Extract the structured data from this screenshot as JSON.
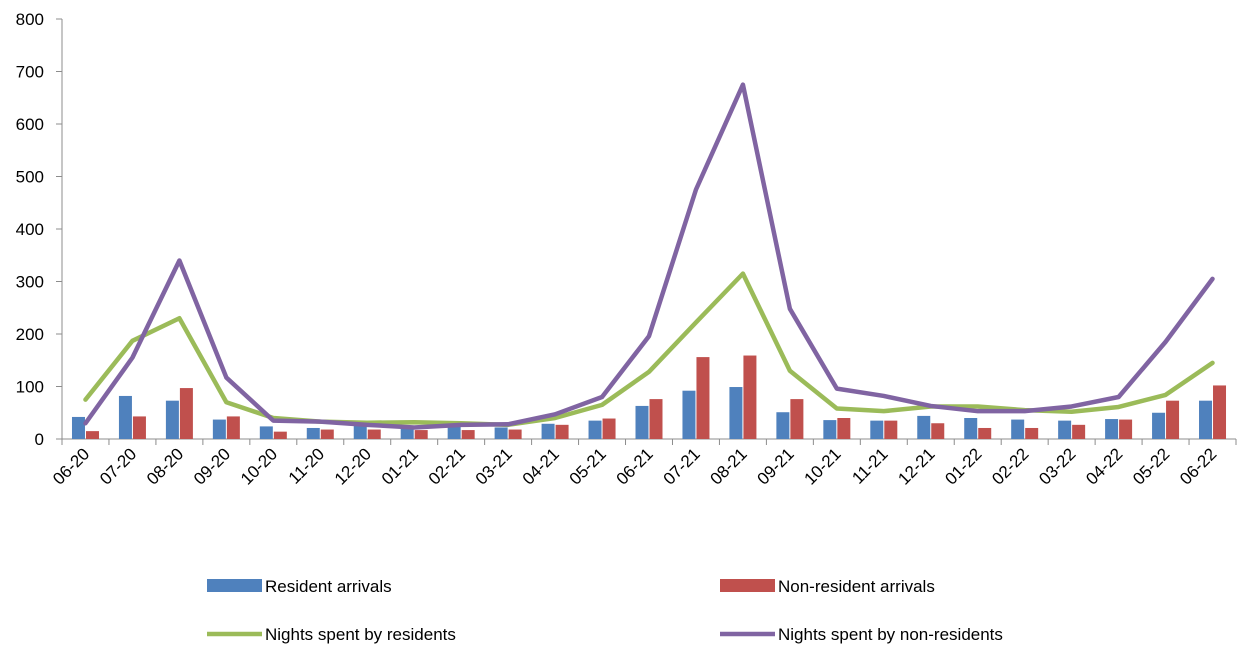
{
  "chart_data": {
    "type": "bar",
    "categories": [
      "06-20",
      "07-20",
      "08-20",
      "09-20",
      "10-20",
      "11-20",
      "12-20",
      "01-21",
      "02-21",
      "03-21",
      "04-21",
      "05-21",
      "06-21",
      "07-21",
      "08-21",
      "09-21",
      "10-21",
      "11-21",
      "12-21",
      "01-22",
      "02-22",
      "03-22",
      "04-22",
      "05-22",
      "06-22"
    ],
    "ylim": [
      0,
      800
    ],
    "yticks": [
      0,
      100,
      200,
      300,
      400,
      500,
      600,
      700,
      800
    ],
    "grid": false,
    "legend_position": "bottom",
    "series": [
      {
        "name": "Resident arrivals",
        "kind": "bar",
        "color": "#4f81bd",
        "values": [
          42,
          82,
          73,
          37,
          24,
          21,
          27,
          25,
          27,
          22,
          29,
          35,
          63,
          92,
          99,
          51,
          36,
          35,
          44,
          40,
          37,
          35,
          38,
          50,
          73
        ]
      },
      {
        "name": "Non-resident arrivals",
        "kind": "bar",
        "color": "#c0504d",
        "values": [
          15,
          43,
          97,
          43,
          14,
          18,
          18,
          17,
          17,
          18,
          27,
          39,
          76,
          156,
          159,
          76,
          40,
          35,
          30,
          21,
          21,
          27,
          37,
          73,
          102
        ]
      },
      {
        "name": "Nights spent by residents",
        "kind": "line",
        "color": "#9bbb59",
        "values": [
          75,
          187,
          230,
          70,
          40,
          33,
          31,
          32,
          30,
          27,
          40,
          65,
          128,
          222,
          315,
          130,
          58,
          53,
          62,
          62,
          55,
          52,
          61,
          84,
          145
        ]
      },
      {
        "name": "Nights spent by non-residents",
        "kind": "line",
        "color": "#8064a2",
        "values": [
          30,
          155,
          340,
          117,
          35,
          33,
          27,
          22,
          27,
          28,
          47,
          80,
          196,
          475,
          675,
          248,
          96,
          82,
          63,
          53,
          53,
          62,
          80,
          185,
          305
        ]
      }
    ]
  }
}
